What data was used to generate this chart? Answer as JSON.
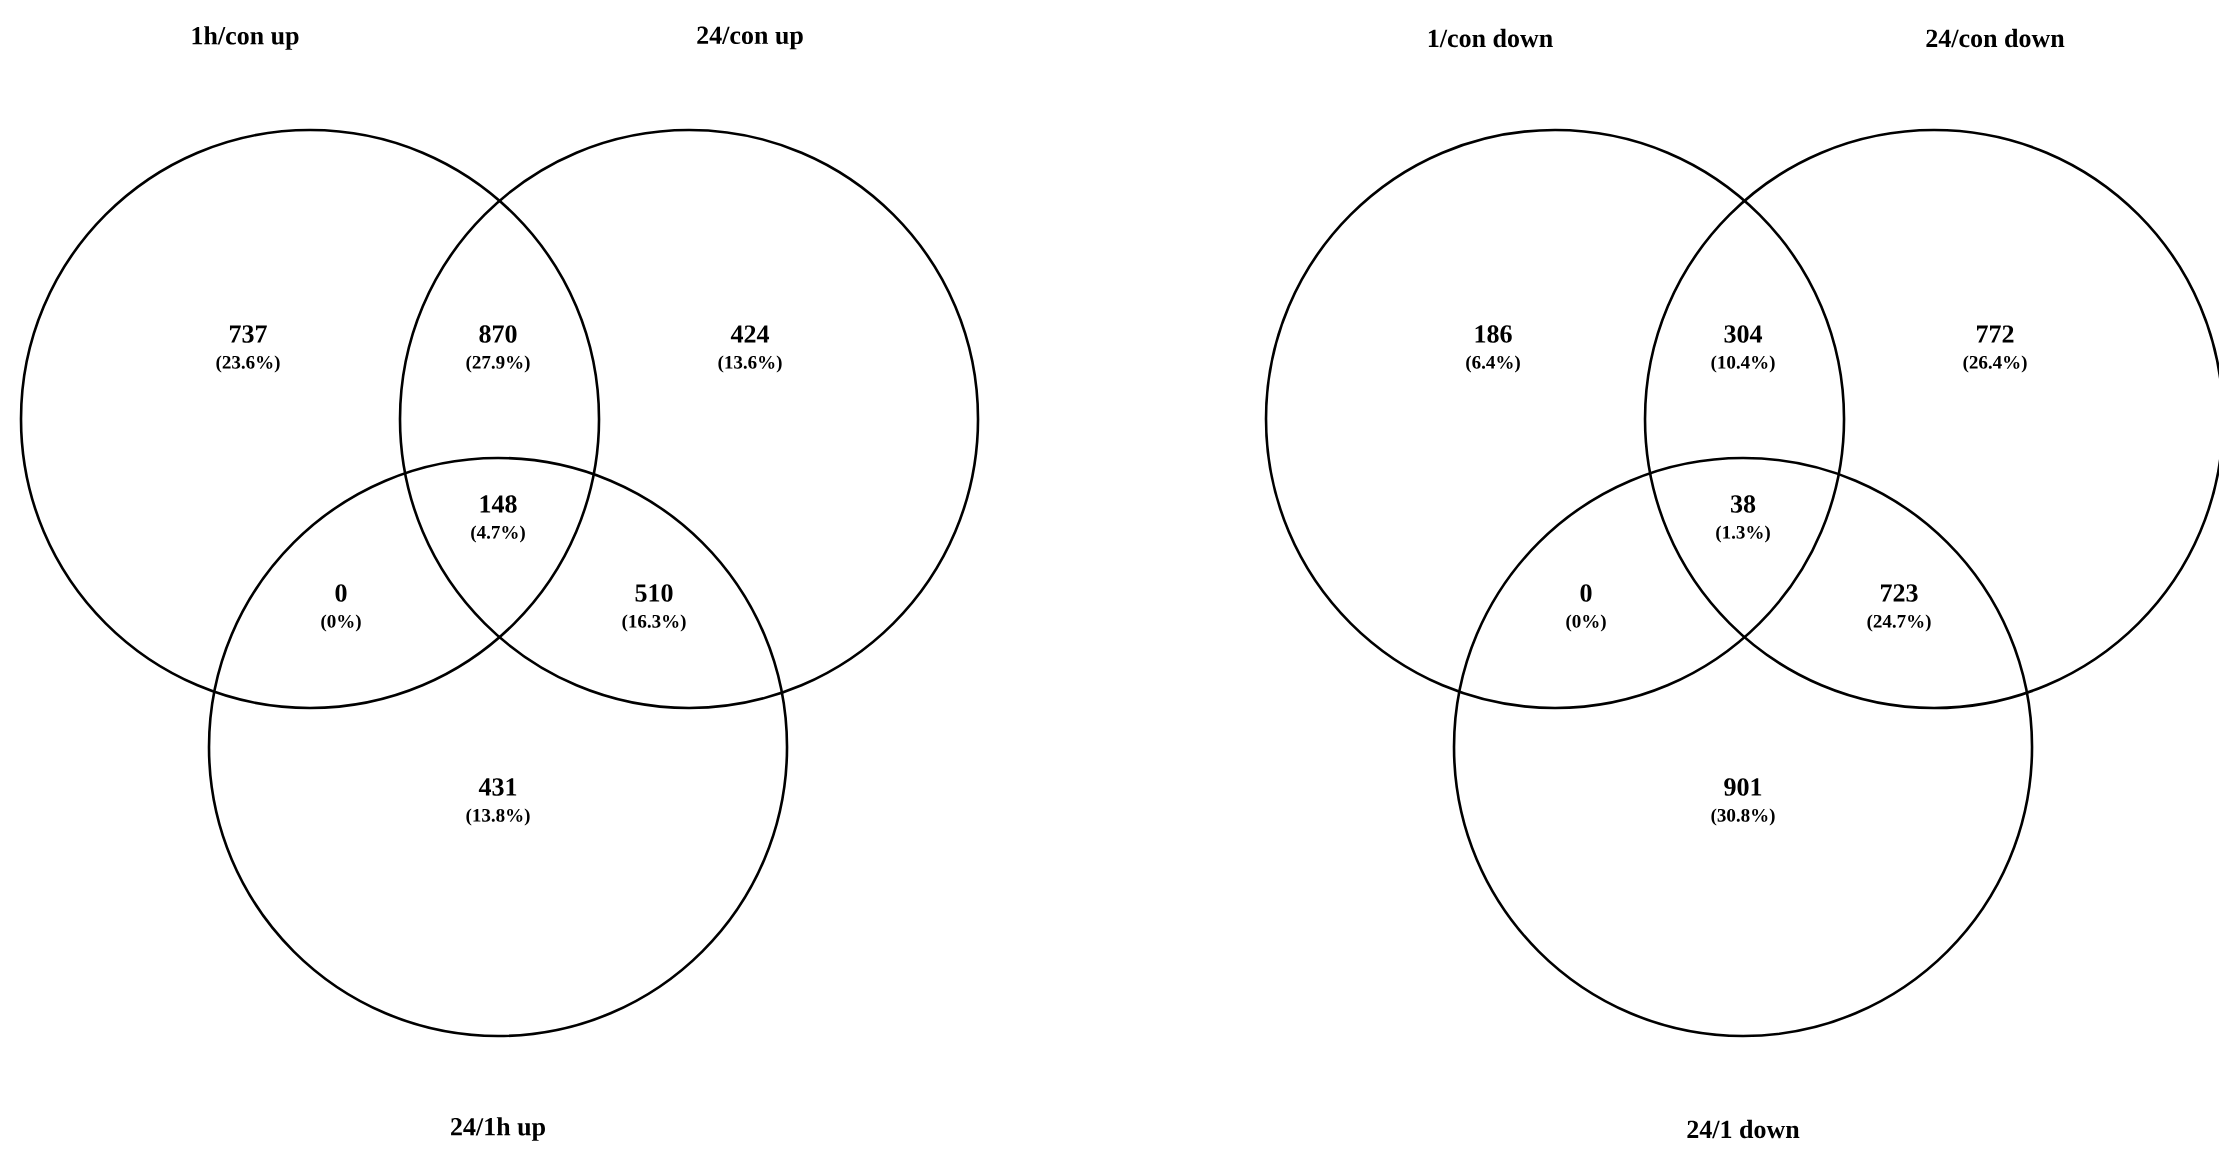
{
  "chart_data": [
    {
      "type": "other",
      "categories": [
        null,
        null,
        null,
        null,
        null,
        null,
        null
      ],
      "values": [
        737,
        870,
        424,
        148,
        0,
        510,
        431
      ],
      "data_labels": true,
      "annotations": [
        "1h/con up",
        "24/con up",
        "24/1h up",
        "(23.6%)",
        "(27.9%)",
        "(13.6%)",
        "(4.7%)",
        "(0%)",
        "(16.3%)",
        "(13.8%)"
      ]
    },
    {
      "type": "other",
      "categories": [
        null,
        null,
        null,
        null,
        null,
        null,
        null
      ],
      "values": [
        186,
        304,
        772,
        38,
        0,
        723,
        901
      ],
      "data_labels": true,
      "annotations": [
        "1/con down",
        "24/con down",
        "24/1 down",
        "(6.4%)",
        "(10.4%)",
        "(26.4%)",
        "(1.3%)",
        "(0%)",
        "(24.7%)",
        "(30.8%)"
      ]
    }
  ]
}
